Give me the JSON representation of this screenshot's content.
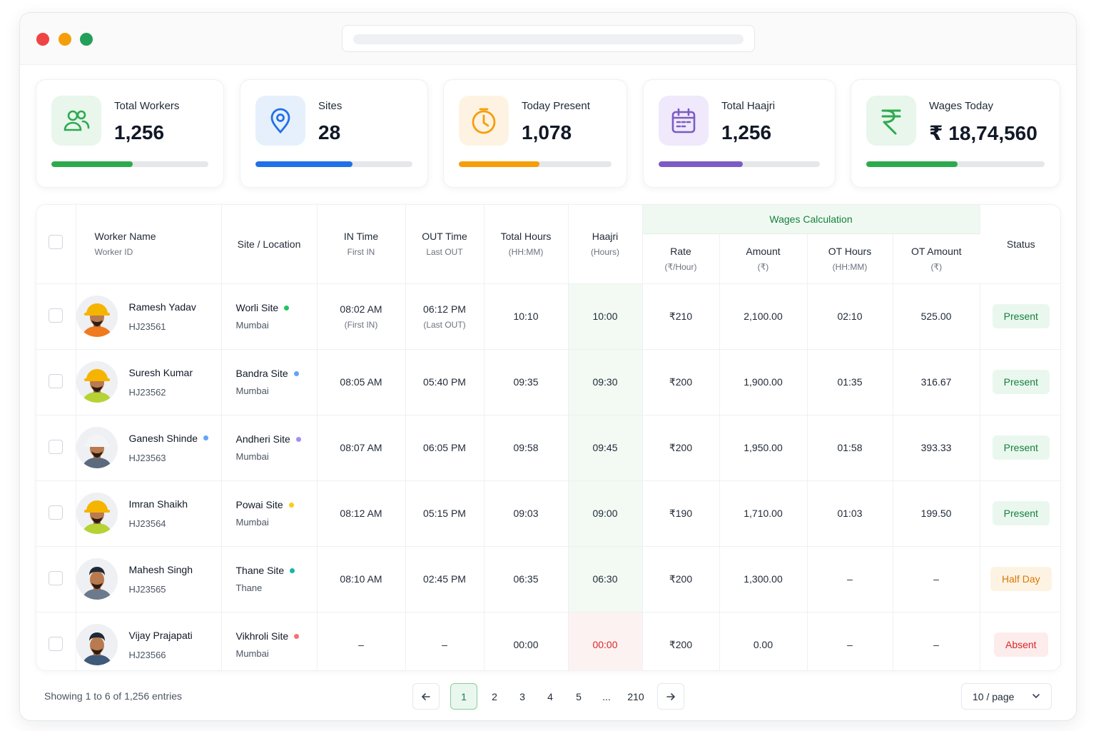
{
  "stats": [
    {
      "label": "Total Workers",
      "value": "1,256",
      "icon": "users-icon",
      "color": "#2eaa4e",
      "bg": "#e8f6ec",
      "progress": 0.52
    },
    {
      "label": "Sites",
      "value": "28",
      "icon": "location-pin-icon",
      "color": "#2170e8",
      "bg": "#e6f0fd",
      "progress": 0.62
    },
    {
      "label": "Today Present",
      "value": "1,078",
      "icon": "clock-icon",
      "color": "#f59e0b",
      "bg": "#fef3e2",
      "progress": 0.53
    },
    {
      "label": "Total Haajri",
      "value": "1,256",
      "icon": "calendar-icon",
      "color": "#7c5cc4",
      "bg": "#efe9fb",
      "progress": 0.52
    },
    {
      "label": "Wages Today",
      "value": "₹ 18,74,560",
      "icon": "rupee-icon",
      "color": "#2eaa4e",
      "bg": "#e8f6ec",
      "progress": 0.51
    }
  ],
  "table": {
    "headers": {
      "worker_name": "Worker Name",
      "worker_id": "Worker ID",
      "site": "Site / Location",
      "in_time": "IN Time",
      "in_sub": "First IN",
      "out_time": "OUT Time",
      "out_sub": "Last OUT",
      "total_hours": "Total Hours",
      "total_hours_sub": "(HH:MM)",
      "haajri": "Haajri",
      "haajri_sub": "(Hours)",
      "wages_group": "Wages Calculation",
      "rate": "Rate",
      "rate_sub": "(₹/Hour)",
      "amount": "Amount",
      "amount_sub": "(₹)",
      "ot_hours": "OT Hours",
      "ot_hours_sub": "(HH:MM)",
      "ot_amount": "OT Amount",
      "ot_amount_sub": "(₹)",
      "status": "Status"
    },
    "rows": [
      {
        "name": "Ramesh Yadav",
        "id": "HJ23561",
        "site": "Worli Site",
        "site_color": "#22c55e",
        "city": "Mumbai",
        "in": "08:02 AM",
        "in_note": "(First IN)",
        "out": "06:12 PM",
        "out_note": "(Last OUT)",
        "total": "10:10",
        "haajri": "10:00",
        "rate": "₹210",
        "amount": "2,100.00",
        "ot_hours": "02:10",
        "ot_amount": "525.00",
        "status": "Present",
        "status_type": "present",
        "helmet": "#f5b400",
        "vest": "#f07a1e",
        "name_dot": ""
      },
      {
        "name": "Suresh Kumar",
        "id": "HJ23562",
        "site": "Bandra Site",
        "site_color": "#60a5fa",
        "city": "Mumbai",
        "in": "08:05 AM",
        "in_note": "",
        "out": "05:40 PM",
        "out_note": "",
        "total": "09:35",
        "haajri": "09:30",
        "rate": "₹200",
        "amount": "1,900.00",
        "ot_hours": "01:35",
        "ot_amount": "316.67",
        "status": "Present",
        "status_type": "present",
        "helmet": "#f5b400",
        "vest": "#b5d334",
        "name_dot": ""
      },
      {
        "name": "Ganesh Shinde",
        "id": "HJ23563",
        "site": "Andheri Site",
        "site_color": "#a78bfa",
        "city": "Mumbai",
        "in": "08:07 AM",
        "in_note": "",
        "out": "06:05 PM",
        "out_note": "",
        "total": "09:58",
        "haajri": "09:45",
        "rate": "₹200",
        "amount": "1,950.00",
        "ot_hours": "01:58",
        "ot_amount": "393.33",
        "status": "Present",
        "status_type": "present",
        "helmet": "#f3f4f6",
        "vest": "#5b6b7d",
        "name_dot": "#60a5fa"
      },
      {
        "name": "Imran Shaikh",
        "id": "HJ23564",
        "site": "Powai Site",
        "site_color": "#facc15",
        "city": "Mumbai",
        "in": "08:12 AM",
        "in_note": "",
        "out": "05:15 PM",
        "out_note": "",
        "total": "09:03",
        "haajri": "09:00",
        "rate": "₹190",
        "amount": "1,710.00",
        "ot_hours": "01:03",
        "ot_amount": "199.50",
        "status": "Present",
        "status_type": "present",
        "helmet": "#f5b400",
        "vest": "#b5d334",
        "name_dot": ""
      },
      {
        "name": "Mahesh Singh",
        "id": "HJ23565",
        "site": "Thane Site",
        "site_color": "#14b8a6",
        "city": "Thane",
        "in": "08:10 AM",
        "in_note": "",
        "out": "02:45 PM",
        "out_note": "",
        "total": "06:35",
        "haajri": "06:30",
        "rate": "₹200",
        "amount": "1,300.00",
        "ot_hours": "–",
        "ot_amount": "–",
        "status": "Half Day",
        "status_type": "half",
        "helmet": "",
        "vest": "#6b7a8c",
        "name_dot": ""
      },
      {
        "name": "Vijay Prajapati",
        "id": "HJ23566",
        "site": "Vikhroli Site",
        "site_color": "#f87171",
        "city": "Mumbai",
        "in": "–",
        "in_note": "",
        "out": "–",
        "out_note": "",
        "total": "00:00",
        "haajri": "00:00",
        "rate": "₹200",
        "amount": "0.00",
        "ot_hours": "–",
        "ot_amount": "–",
        "status": "Absent",
        "status_type": "absent",
        "helmet": "",
        "vest": "#3f5a7a",
        "name_dot": ""
      }
    ]
  },
  "footer": {
    "showing": "Showing 1 to 6 of 1,256 entries",
    "pages": [
      "1",
      "2",
      "3",
      "4",
      "5",
      "...",
      "210"
    ],
    "active_page": "1",
    "per_page": "10 / page"
  }
}
